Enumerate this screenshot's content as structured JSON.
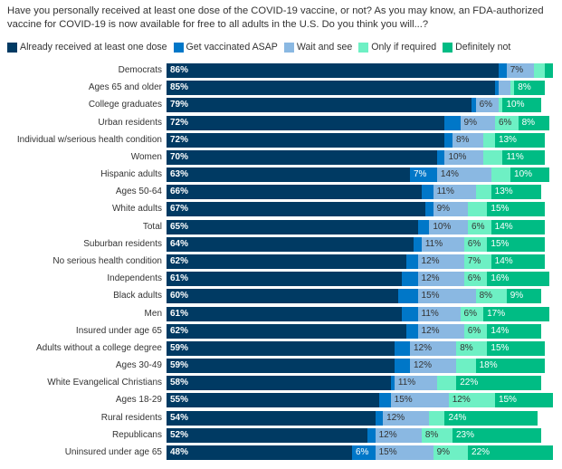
{
  "title": "Have you personally received at least one dose of the COVID-19 vaccine, or not? As you may know, an FDA-authorized vaccine for COVID-19 is now available for free to all adults in the U.S. Do you think you will...?",
  "chart_data": {
    "type": "bar",
    "orientation": "horizontal",
    "stacked": true,
    "xlim": [
      0,
      100
    ],
    "legend_position": "top-left",
    "value_suffix": "%",
    "categories": [
      "Democrats",
      "Ages 65 and older",
      "College graduates",
      "Urban residents",
      "Individual w/serious health condition",
      "Women",
      "Hispanic adults",
      "Ages 50-64",
      "White adults",
      "Total",
      "Suburban residents",
      "No serious health condition",
      "Independents",
      "Black adults",
      "Men",
      "Insured under age 65",
      "Adults without a college degree",
      "Ages 30-49",
      "White Evangelical Christians",
      "Ages 18-29",
      "Rural residents",
      "Republicans",
      "Uninsured under age 65"
    ],
    "series": [
      {
        "name": "Already received at least one dose",
        "color": "#003a63",
        "label_color": "#ffffff",
        "values": [
          86,
          85,
          79,
          72,
          72,
          70,
          63,
          66,
          67,
          65,
          64,
          62,
          61,
          60,
          61,
          62,
          59,
          59,
          58,
          55,
          54,
          52,
          48
        ]
      },
      {
        "name": "Get vaccinated ASAP",
        "color": "#0077c8",
        "label_color": "#ffffff",
        "values": [
          2,
          1,
          1,
          4,
          2,
          2,
          7,
          3,
          2,
          3,
          2,
          3,
          4,
          5,
          4,
          3,
          4,
          4,
          1,
          3,
          2,
          2,
          6
        ]
      },
      {
        "name": "Wait and see",
        "color": "#8ab8e2",
        "label_color": "#333333",
        "values": [
          7,
          3,
          6,
          9,
          8,
          10,
          14,
          11,
          9,
          10,
          11,
          12,
          12,
          15,
          11,
          12,
          12,
          12,
          11,
          15,
          12,
          12,
          15
        ]
      },
      {
        "name": "Only if required",
        "color": "#6ef0c4",
        "label_color": "#333333",
        "values": [
          3,
          1,
          1,
          6,
          3,
          5,
          5,
          4,
          5,
          6,
          6,
          7,
          6,
          8,
          6,
          6,
          8,
          5,
          5,
          12,
          4,
          8,
          9
        ]
      },
      {
        "name": "Definitely not",
        "color": "#00bc84",
        "label_color": "#ffffff",
        "values": [
          2,
          8,
          10,
          8,
          13,
          11,
          10,
          13,
          15,
          14,
          15,
          14,
          16,
          9,
          17,
          14,
          15,
          18,
          22,
          15,
          24,
          23,
          22
        ]
      }
    ]
  }
}
